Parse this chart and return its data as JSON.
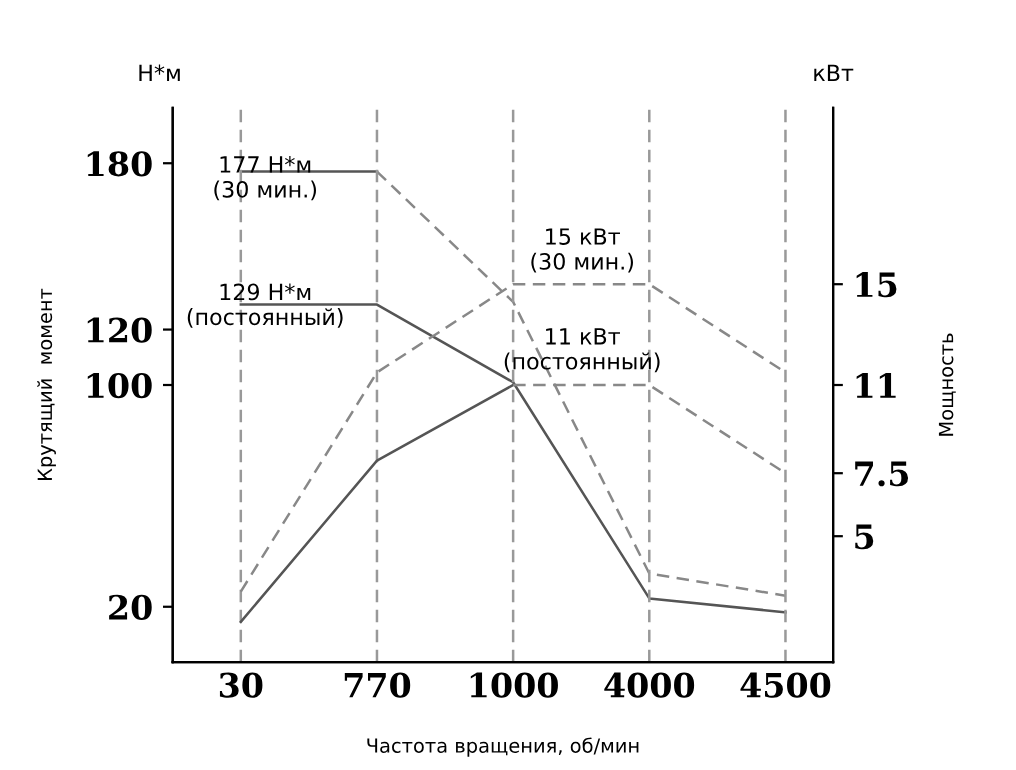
{
  "chart_data": {
    "type": "line",
    "xlabel": "Частота вращения, об/мин",
    "ylabel": "Крутящий  момент",
    "y2label": "Мощность",
    "categories": [
      "30",
      "770",
      "1000",
      "4000",
      "4500"
    ],
    "series": [
      {
        "color": "#555555",
        "line_style": "solid",
        "values": [
          177,
          177,
          null,
          null,
          null
        ]
      },
      {
        "color": "#888888",
        "line_style": "dashed",
        "values": [
          null,
          177,
          130,
          32,
          24
        ]
      },
      {
        "color": "#555555",
        "line_style": "solid",
        "values": [
          129,
          129,
          101,
          23,
          18
        ]
      },
      {
        "color": "#888888",
        "line_style": "dashed",
        "axis": "y2",
        "values": [
          2.8,
          11.5,
          15,
          15,
          11.5
        ]
      },
      {
        "color": "#555555",
        "line_style": "solid",
        "axis": "y2",
        "values": [
          1.6,
          8,
          11,
          null,
          null
        ]
      },
      {
        "color": "#888888",
        "line_style": "dashed",
        "axis": "y2",
        "values": [
          null,
          null,
          11,
          11,
          7.5
        ]
      }
    ],
    "ylim": [
      0,
      200
    ],
    "yticks": [
      20,
      100,
      120,
      180
    ],
    "y2lim": [
      0,
      22
    ],
    "y2ticks": [
      5,
      7.5,
      11,
      15
    ],
    "ref_lines": [
      {
        "axis": "x",
        "value": "30",
        "color": "#999999",
        "line_style": "dashed"
      },
      {
        "axis": "x",
        "value": "770",
        "color": "#999999",
        "line_style": "dashed"
      },
      {
        "axis": "x",
        "value": "1000",
        "color": "#999999",
        "line_style": "dashed"
      },
      {
        "axis": "x",
        "value": "4000",
        "color": "#999999",
        "line_style": "dashed"
      },
      {
        "axis": "x",
        "value": "4500",
        "color": "#999999",
        "line_style": "dashed"
      }
    ],
    "annotations": [
      "Н*м",
      "кВт",
      "177 Н*м\n(30 мин.)",
      "129 Н*м\n(постоянный)",
      "15 кВт\n(30 мин.)",
      "11 кВт\n(постоянный)"
    ],
    "legend": false
  }
}
